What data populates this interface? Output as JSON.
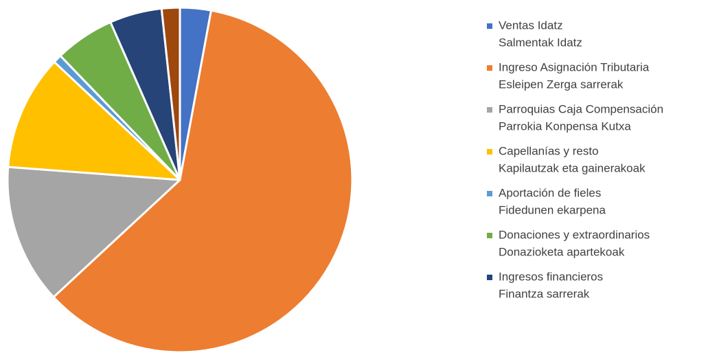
{
  "chart_data": {
    "type": "pie",
    "categories": [
      [
        "Ventas Idatz",
        "Salmentak Idatz"
      ],
      [
        "Ingreso Asignación Tributaria",
        "Esleipen Zerga sarrerak"
      ],
      [
        "Parroquias Caja Compensación",
        "Parrokia Konpensa Kutxa"
      ],
      [
        "Capellanías y resto",
        "Kapilautzak eta gainerakoak"
      ],
      [
        "Aportación de fieles",
        "Fidedunen ekarpena"
      ],
      [
        "Donaciones y extraordinarios",
        "Donazioketa apartekoak"
      ],
      [
        "Ingresos financieros",
        "Finantza sarrerak"
      ],
      null
    ],
    "values": [
      2.9,
      60.2,
      13.1,
      10.8,
      0.8,
      5.6,
      4.9,
      1.7
    ],
    "colors": [
      "#4472c4",
      "#ed7d31",
      "#a5a5a5",
      "#ffc000",
      "#5b9bd5",
      "#70ad47",
      "#264478",
      "#9e480e"
    ],
    "legend": "right"
  }
}
